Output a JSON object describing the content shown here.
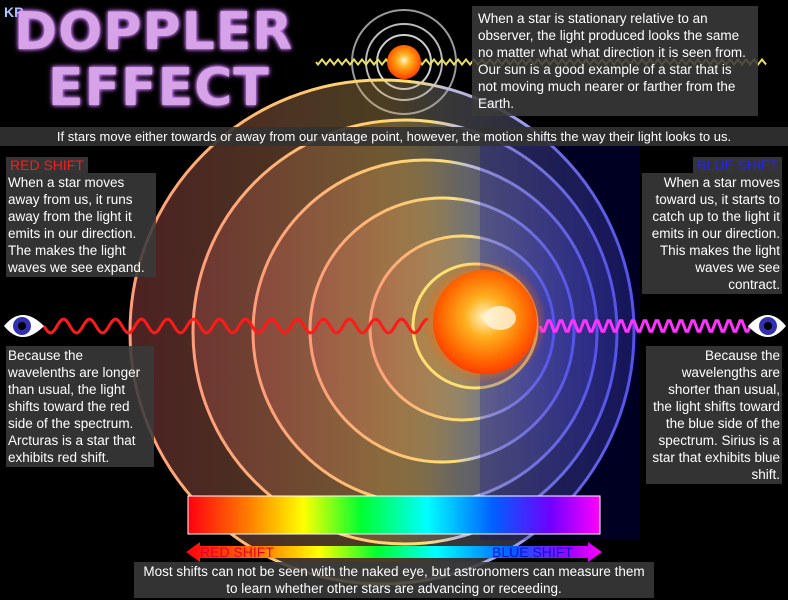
{
  "logo": "KP",
  "title": {
    "line1": "DOPPLER",
    "line2": "EFFECT"
  },
  "stationary_text": "When a star is stationary relative to an observer, the light produced looks the same no matter what what direction it is seen from.  Our sun is a good example of a star that is not moving much nearer or farther from the Earth.",
  "intro_text": "If stars move either towards or away from our vantage point, however, the motion shifts the way their light looks to us.",
  "red_shift": {
    "label": "RED SHIFT",
    "text1": "When a star moves away from us, it runs away from the light it emits in our direction. The makes the light waves we see expand.",
    "text2": "Because the wavelenths are longer than usual, the light shifts toward the red side of the spectrum. Arcturas is a star that exhibits red shift."
  },
  "blue_shift": {
    "label": "BLUE SHIFT",
    "text1": "When a star moves toward us, it starts to catch up to the light it emits in our direction. This makes the light waves we see contract.",
    "text2": "Because the wavelengths are shorter than usual, the light shifts toward the blue side of the spectrum.  Sirius is a star that exhibits blue shift."
  },
  "spectrum_arrow": {
    "left_label": "RED SHIFT",
    "right_label": "BLUE SHIFT"
  },
  "bottom_text": "Most shifts can not be seen with the naked eye, but astronomers can measure them to learn whether other stars are advancing or receeding.",
  "colors": {
    "red": "#ff1a1a",
    "blue": "#2222ff",
    "magenta": "#ff33ff",
    "title": "#d6a3e8"
  }
}
